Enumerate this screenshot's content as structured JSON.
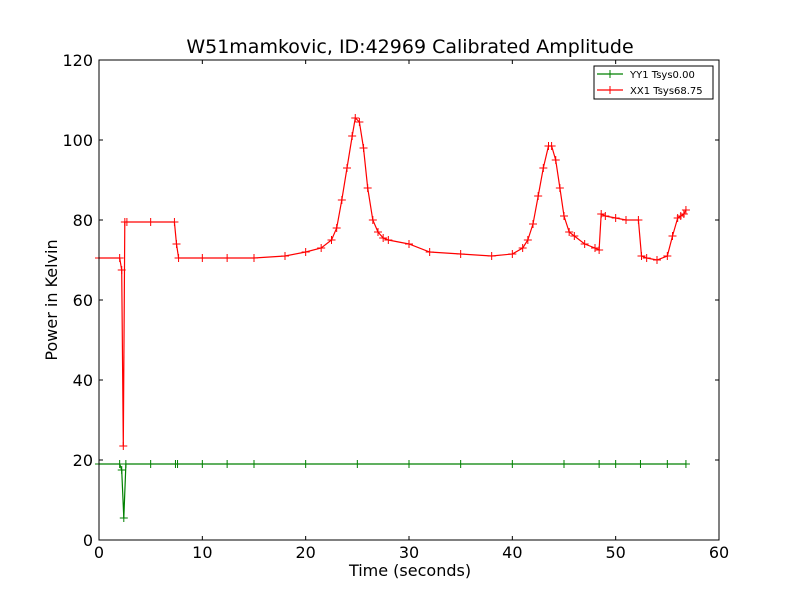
{
  "chart_data": {
    "type": "line",
    "title": "W51mamkovic, ID:42969 Calibrated Amplitude",
    "xlabel": "Time (seconds)",
    "ylabel": "Power in Kelvin",
    "xlim": [
      0,
      60
    ],
    "ylim": [
      0,
      120
    ],
    "xticks": [
      0,
      10,
      20,
      30,
      40,
      50,
      60
    ],
    "yticks": [
      0,
      20,
      40,
      60,
      80,
      100,
      120
    ],
    "xtick_labels": [
      "0",
      "10",
      "20",
      "30",
      "40",
      "50",
      "60"
    ],
    "ytick_labels": [
      "0",
      "20",
      "40",
      "60",
      "80",
      "100",
      "120"
    ],
    "grid": false,
    "legend_position": "top-right",
    "marker": "+",
    "series": [
      {
        "name": "YY1 Tsys0.00",
        "color": "#008000",
        "x": [
          0.0,
          2.0,
          2.2,
          2.4,
          2.6,
          5.0,
          7.4,
          7.6,
          10.0,
          12.4,
          15.0,
          20.0,
          25.0,
          30.0,
          35.0,
          40.0,
          45.0,
          48.4,
          50.0,
          52.4,
          55.0,
          56.8
        ],
        "y": [
          19,
          19,
          17.5,
          5.5,
          19,
          19,
          19,
          19,
          19,
          19,
          19,
          19,
          19,
          19,
          19,
          19,
          19,
          19,
          19,
          19,
          19,
          19
        ]
      },
      {
        "name": "XX1 Tsys68.75",
        "color": "#ff0000",
        "x": [
          0.0,
          2.0,
          2.2,
          2.35,
          2.5,
          2.7,
          5.0,
          7.3,
          7.5,
          7.7,
          10.0,
          12.4,
          15.0,
          18.0,
          20.0,
          21.5,
          22.5,
          23.0,
          23.5,
          24.0,
          24.5,
          24.8,
          25.2,
          25.6,
          26.0,
          26.5,
          27.0,
          27.5,
          28.0,
          30.0,
          32.0,
          35.0,
          38.0,
          40.0,
          41.0,
          41.5,
          42.0,
          42.5,
          43.0,
          43.5,
          43.8,
          44.2,
          44.6,
          45.0,
          45.5,
          46.0,
          47.0,
          48.0,
          48.4,
          48.6,
          49.0,
          50.0,
          51.0,
          52.2,
          52.5,
          53.0,
          54.0,
          55.0,
          55.5,
          56.0,
          56.3,
          56.6,
          56.8
        ],
        "y": [
          70.5,
          70.5,
          67.5,
          23.5,
          79.5,
          79.5,
          79.5,
          79.5,
          74.0,
          70.5,
          70.5,
          70.5,
          70.5,
          71.0,
          72.0,
          73.0,
          75.0,
          78.0,
          85.0,
          93.0,
          101.0,
          105.5,
          104.5,
          98.0,
          88.0,
          80.0,
          77.0,
          75.5,
          75.0,
          74.0,
          72.0,
          71.5,
          71.0,
          71.5,
          73.0,
          75.0,
          79.0,
          86.0,
          93.0,
          98.5,
          98.5,
          95.0,
          88.0,
          81.0,
          77.0,
          76.0,
          74.0,
          73.0,
          72.5,
          81.5,
          81.0,
          80.5,
          80.0,
          80.0,
          71.0,
          70.5,
          70.0,
          71.0,
          76.0,
          80.5,
          81.0,
          81.5,
          82.5
        ]
      }
    ]
  }
}
